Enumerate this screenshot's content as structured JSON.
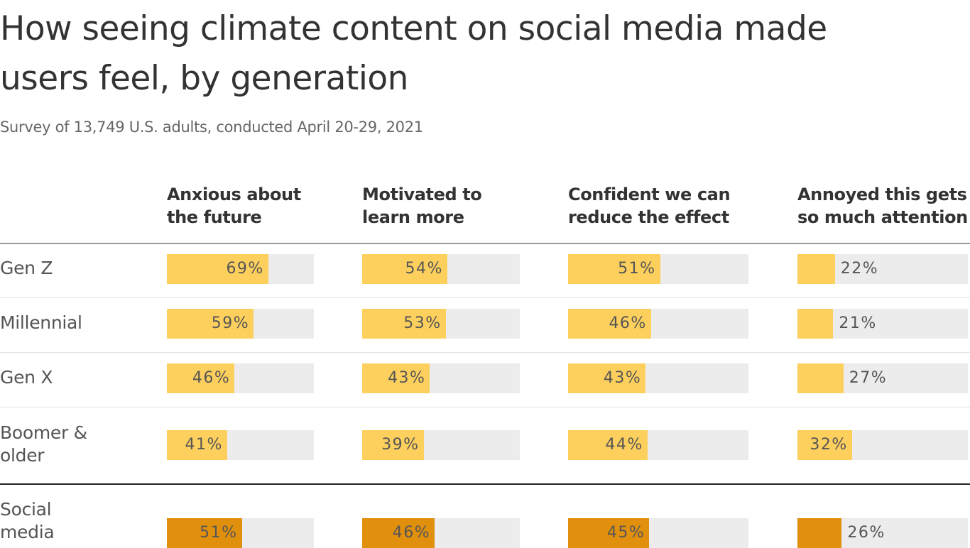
{
  "title": "How seeing climate content on social media made users feel, by generation",
  "subtitle": "Survey of 13,749 U.S. adults, conducted April 20-29, 2021",
  "colors": {
    "generation_bar": "#fdd05e",
    "social_media_bar": "#e1900e",
    "track": "#ececec"
  },
  "chart_data": {
    "type": "bar",
    "title": "How seeing climate content on social media made users feel, by generation",
    "subtitle": "Survey of 13,749 U.S. adults, conducted April 20-29, 2021",
    "unit": "%",
    "xlim": [
      0,
      100
    ],
    "categories": [
      "Anxious about the future",
      "Motivated to learn more",
      "Confident we can reduce the effect",
      "Annoyed this gets so much attention"
    ],
    "rows": [
      {
        "label": "Gen Z",
        "values": [
          69,
          54,
          51,
          22
        ],
        "labels": [
          "69%",
          "54%",
          "51%",
          "22%"
        ]
      },
      {
        "label": "Millennial",
        "values": [
          59,
          53,
          46,
          21
        ],
        "labels": [
          "59%",
          "53%",
          "46%",
          "21%"
        ]
      },
      {
        "label": "Gen X",
        "values": [
          46,
          43,
          43,
          27
        ],
        "labels": [
          "46%",
          "43%",
          "43%",
          "27%"
        ]
      },
      {
        "label": "Boomer & older",
        "values": [
          41,
          39,
          44,
          32
        ],
        "labels": [
          "41%",
          "39%",
          "44%",
          "32%"
        ]
      },
      {
        "label": "Social media",
        "values": [
          51,
          46,
          45,
          26
        ],
        "labels": [
          "51%",
          "46%",
          "45%",
          "26%"
        ]
      }
    ]
  }
}
